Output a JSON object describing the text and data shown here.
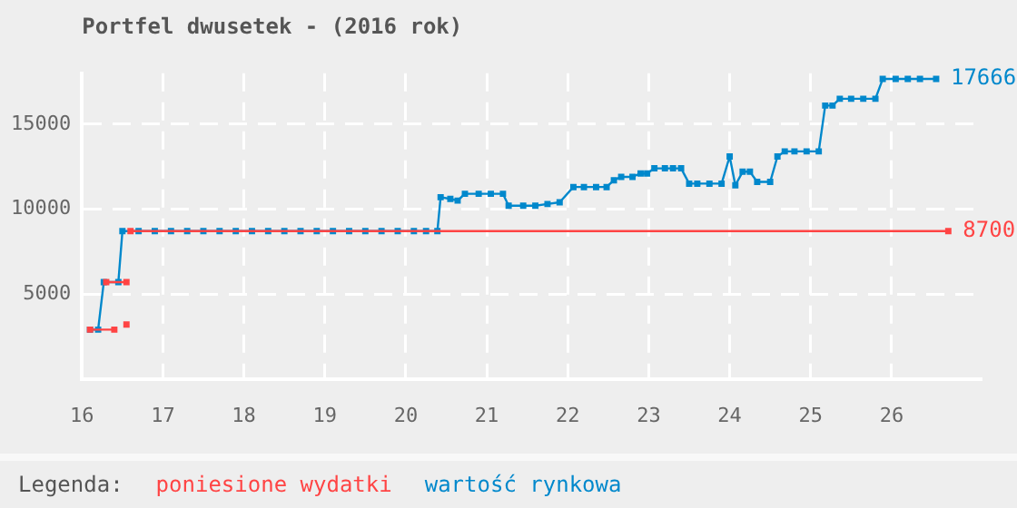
{
  "chart_data": {
    "type": "line",
    "title": "Portfel dwusetek - (2016 rok)",
    "legend_title": "Legenda:",
    "legend": "bottom",
    "grid": true,
    "marker": "square",
    "line_style": "solid",
    "xlim": [
      16,
      27.1
    ],
    "xticks": [
      16,
      17,
      18,
      19,
      20,
      21,
      22,
      23,
      24,
      25,
      26
    ],
    "ylim": [
      0,
      18000
    ],
    "yticks": [
      5000,
      10000,
      15000
    ],
    "series": [
      {
        "name": "poniesione wydatki",
        "color": "#ff4444",
        "x": [
          16.6,
          26.7
        ],
        "values": [
          8700,
          8700
        ],
        "value_labels": [
          null,
          "8700"
        ]
      },
      {
        "color": "#ff4444",
        "x": [
          16.1,
          16.4
        ],
        "values": [
          2900,
          2900
        ]
      },
      {
        "color": "#ff4444",
        "x": [
          16.3,
          16.55
        ],
        "values": [
          5700,
          5700
        ]
      },
      {
        "type": "scatter",
        "color": "#ff4444",
        "x": [
          16.55
        ],
        "values": [
          3200
        ]
      },
      {
        "name": "wartość rynkowa",
        "color": "#0088cc",
        "x": [
          16.1,
          16.2,
          16.27,
          16.45,
          16.5,
          16.7,
          16.9,
          17.1,
          17.3,
          17.5,
          17.7,
          17.9,
          18.1,
          18.3,
          18.5,
          18.7,
          18.9,
          19.1,
          19.3,
          19.5,
          19.7,
          19.9,
          20.1,
          20.25,
          20.39,
          20.43,
          20.55,
          20.64,
          20.73,
          20.9,
          21.05,
          21.2,
          21.27,
          21.45,
          21.6,
          21.75,
          21.9,
          22.07,
          22.2,
          22.35,
          22.48,
          22.57,
          22.66,
          22.8,
          22.9,
          22.98,
          23.07,
          23.2,
          23.3,
          23.4,
          23.5,
          23.6,
          23.75,
          23.9,
          24.0,
          24.07,
          24.16,
          24.25,
          24.34,
          24.5,
          24.59,
          24.68,
          24.8,
          24.95,
          25.1,
          25.18,
          25.27,
          25.36,
          25.5,
          25.65,
          25.8,
          25.89,
          26.05,
          26.2,
          26.35,
          26.55
        ],
        "values": [
          2900,
          2900,
          5700,
          5700,
          8700,
          8700,
          8700,
          8700,
          8700,
          8700,
          8700,
          8700,
          8700,
          8700,
          8700,
          8700,
          8700,
          8700,
          8700,
          8700,
          8700,
          8700,
          8700,
          8700,
          8700,
          10700,
          10600,
          10500,
          10900,
          10900,
          10900,
          10900,
          10200,
          10200,
          10200,
          10300,
          10400,
          11300,
          11300,
          11300,
          11300,
          11700,
          11900,
          11900,
          12100,
          12100,
          12400,
          12400,
          12400,
          12400,
          11500,
          11500,
          11500,
          11500,
          13100,
          11400,
          12200,
          12200,
          11600,
          11600,
          13100,
          13400,
          13400,
          13400,
          13400,
          16100,
          16100,
          16500,
          16500,
          16500,
          16500,
          17666,
          17666,
          17666,
          17666,
          17666
        ],
        "value_labels": [
          null,
          null,
          null,
          null,
          null,
          null,
          null,
          null,
          null,
          null,
          null,
          null,
          null,
          null,
          null,
          null,
          null,
          null,
          null,
          null,
          null,
          null,
          null,
          null,
          null,
          null,
          null,
          null,
          null,
          null,
          null,
          null,
          null,
          null,
          null,
          null,
          null,
          null,
          null,
          null,
          null,
          null,
          null,
          null,
          null,
          null,
          null,
          null,
          null,
          null,
          null,
          null,
          null,
          null,
          null,
          null,
          null,
          null,
          null,
          null,
          null,
          null,
          null,
          null,
          null,
          null,
          null,
          null,
          null,
          null,
          null,
          null,
          null,
          null,
          null,
          "17666"
        ]
      }
    ]
  }
}
